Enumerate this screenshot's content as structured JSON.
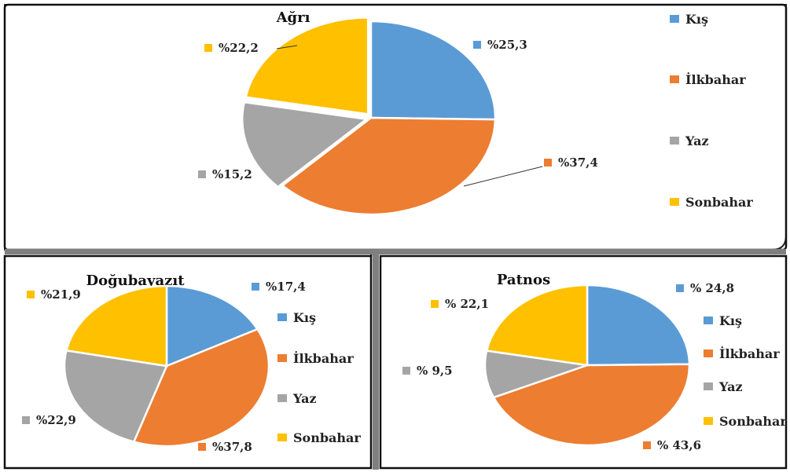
{
  "colors": {
    "Kış": "#5b9bd5",
    "İlkbahar": "#ed7d31",
    "Yaz": "#a5a5a5",
    "Sonbahar": "#ffc000"
  },
  "chart_data": [
    {
      "type": "pie",
      "title": "Ağrı",
      "categories": [
        "Kış",
        "İlkbahar",
        "Yaz",
        "Sonbahar"
      ],
      "values": [
        25.3,
        37.4,
        15.2,
        22.2
      ],
      "data_labels": [
        "%25,3",
        "%37,4",
        "%15,2",
        "%22,2"
      ],
      "legend": [
        "Kış",
        "İlkbahar",
        "Yaz",
        "Sonbahar"
      ],
      "legend_position": "right"
    },
    {
      "type": "pie",
      "title": "Doğubayazıt",
      "categories": [
        "Kış",
        "İlkbahar",
        "Yaz",
        "Sonbahar"
      ],
      "values": [
        17.4,
        37.8,
        22.9,
        21.9
      ],
      "data_labels": [
        "%17,4",
        "%37,8",
        "%22,9",
        "%21,9"
      ],
      "legend": [
        "Kış",
        "İlkbahar",
        "Yaz",
        "Sonbahar"
      ],
      "legend_position": "right"
    },
    {
      "type": "pie",
      "title": "Patnos",
      "categories": [
        "Kış",
        "İlkbahar",
        "Yaz",
        "Sonbahar"
      ],
      "values": [
        24.8,
        43.6,
        9.5,
        22.1
      ],
      "data_labels": [
        "% 24,8",
        "% 43,6",
        "% 9,5",
        "% 22,1"
      ],
      "legend": [
        "Kış",
        "İlkbahar",
        "Yaz",
        "Sonbahar"
      ],
      "legend_position": "right"
    }
  ]
}
